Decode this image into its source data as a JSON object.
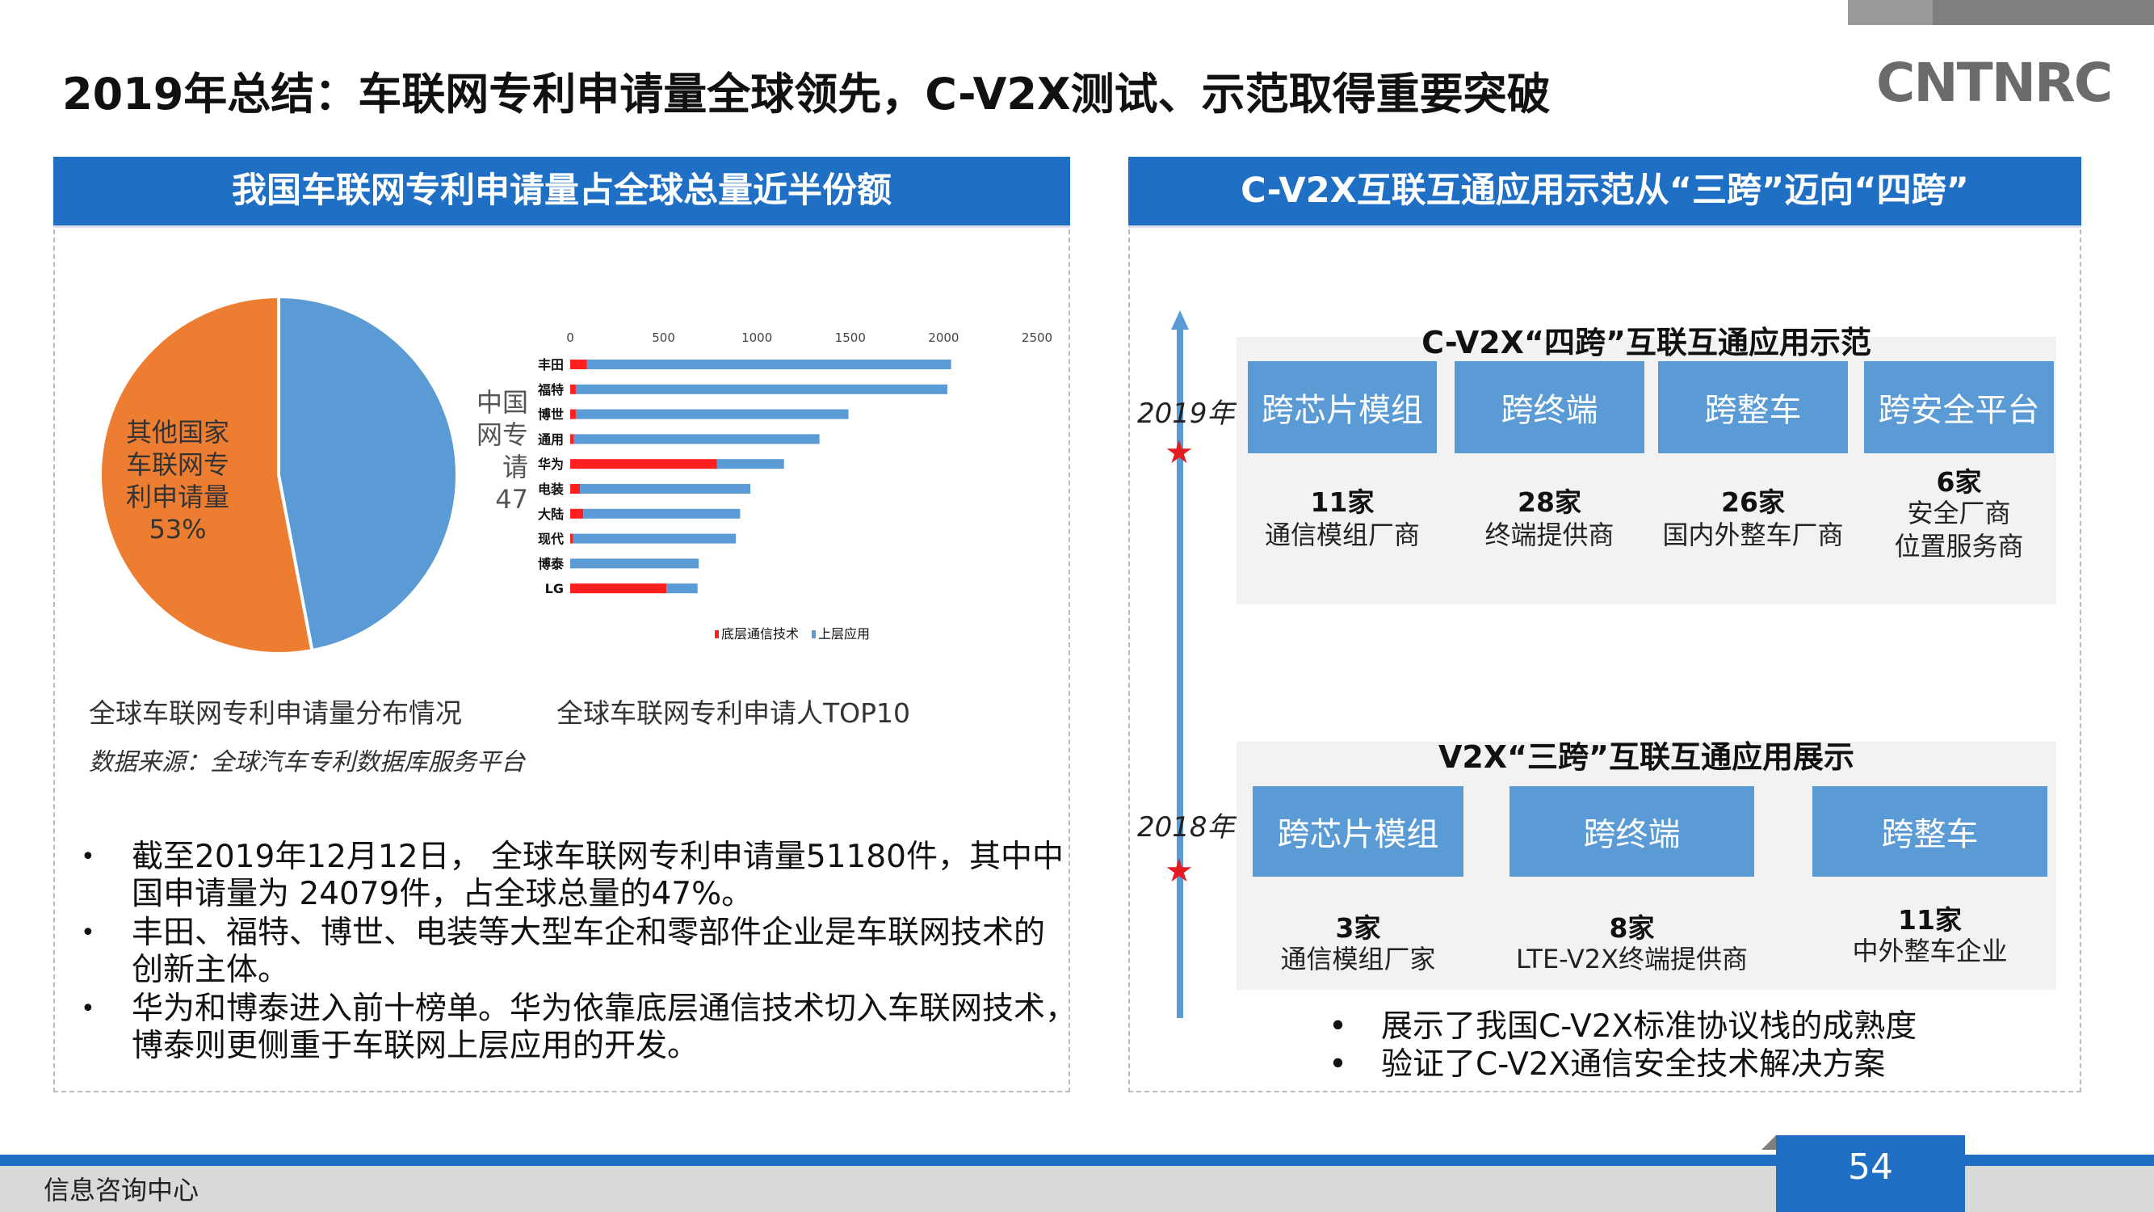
{
  "title": "2019年总结：车联网专利申请量全球领先，C-V2X测试、示范取得重要突破",
  "logo": "CATARC",
  "left": {
    "header": "我国车联网专利申请量占全球总量近半份额",
    "pie_caption": "全球车联网专利申请量分布情况",
    "bar_caption": "全球车联网专利申请人TOP10",
    "source": "数据来源：全球汽车专利数据库服务平台",
    "bullets": [
      [
        "截至2019年12月12日， 全球车联网专利申请量51180件，其中中",
        "国申请量为 24079件，占全球总量的47%。"
      ],
      [
        "丰田、福特、博世、电装等大型车企和零部件企业是车联网技术的",
        "创新主体。"
      ],
      [
        "华为和博泰进入前十榜单。华为依靠底层通信技术切入车联网技术，",
        "博泰则更侧重于车联网上层应用的开发。"
      ]
    ]
  },
  "chart_data": [
    {
      "type": "pie",
      "slices": [
        {
          "label_lines": [
            "中国",
            "网专",
            "请",
            "47"
          ],
          "value": 47,
          "color": "#5b9bd5"
        },
        {
          "label_lines": [
            "其他国家",
            "车联网专",
            "利申请量",
            "53%"
          ],
          "value": 53,
          "color": "#ed7d31"
        }
      ]
    },
    {
      "type": "bar",
      "orientation": "horizontal",
      "stacked": true,
      "categories": [
        "丰田",
        "福特",
        "博世",
        "通用",
        "华为",
        "电装",
        "大陆",
        "现代",
        "博泰",
        "LG"
      ],
      "series": [
        {
          "name": "底层通信技术",
          "color": "#ff1f1f",
          "values": [
            90,
            30,
            30,
            20,
            785,
            52,
            70,
            15,
            0,
            515
          ]
        },
        {
          "name": "上层应用",
          "color": "#5b9bd5",
          "values": [
            1950,
            1990,
            1460,
            1315,
            360,
            913,
            840,
            872,
            688,
            167
          ]
        }
      ],
      "xlim": [
        0,
        2500
      ],
      "xticks": [
        "0",
        "500",
        "1000",
        "1500",
        "2000",
        "2500"
      ],
      "legend": "bottom"
    }
  ],
  "right": {
    "header": "C-V2X互联互通应用示范从“三跨”迈向“四跨”",
    "y2019": "2019年",
    "y2018": "2018年",
    "g1": {
      "title": "C-V2X“四跨”互联互通应用示范",
      "boxes": [
        "跨芯片模组",
        "跨终端",
        "跨整车",
        "跨安全平台"
      ],
      "counts": [
        "11家",
        "28家",
        "26家",
        "6家"
      ],
      "descs": [
        [
          "通信模组厂商"
        ],
        [
          "终端提供商"
        ],
        [
          "国内外整车厂商"
        ],
        [
          "安全厂商",
          "位置服务商"
        ]
      ]
    },
    "g2": {
      "title": "V2X“三跨”互联互通应用展示",
      "boxes": [
        "跨芯片模组",
        "跨终端",
        "跨整车"
      ],
      "counts": [
        "3家",
        "8家",
        "11家"
      ],
      "descs": [
        "通信模组厂家",
        "LTE-V2X终端提供商",
        "中外整车企业"
      ]
    },
    "bullets": [
      "展示了我国C-V2X标准协议栈的成熟度",
      "验证了C-V2X通信安全技术解决方案"
    ]
  },
  "footer": {
    "org": "信息咨询中心",
    "page": "54"
  }
}
